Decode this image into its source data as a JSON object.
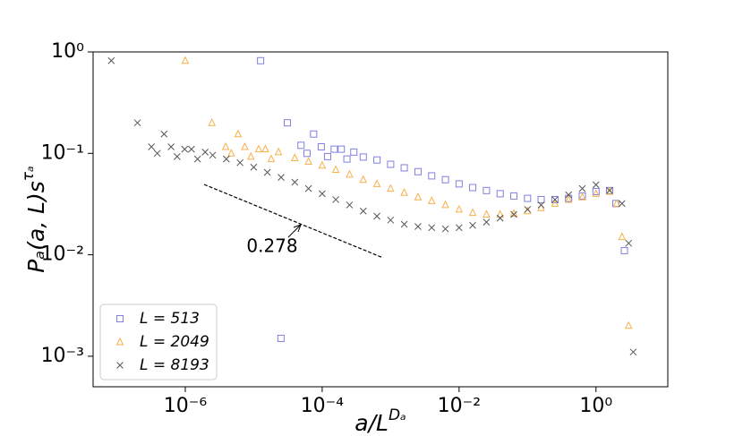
{
  "chart_data": {
    "type": "scatter",
    "xlabel": {
      "base": "a/L",
      "sup": "Dₐ"
    },
    "ylabel": {
      "base": "Pₐ(a, L)s",
      "sup": "τₐ"
    },
    "xscale": "log",
    "yscale": "log",
    "xlim": [
      4.5e-08,
      11.2
    ],
    "ylim": [
      0.0005,
      1
    ],
    "xticks": [
      {
        "value": 1e-06,
        "label": "10⁻⁶"
      },
      {
        "value": 0.0001,
        "label": "10⁻⁴"
      },
      {
        "value": 0.01,
        "label": "10⁻²"
      },
      {
        "value": 1,
        "label": "10⁰"
      }
    ],
    "yticks": [
      {
        "value": 0.001,
        "label": "10⁻³"
      },
      {
        "value": 0.01,
        "label": "10⁻²"
      },
      {
        "value": 0.1,
        "label": "10⁻¹"
      },
      {
        "value": 1,
        "label": "10⁰"
      }
    ],
    "legend": "lower left",
    "annotation": "0.278",
    "series": [
      {
        "name": "L = 513",
        "color": "#8080e0",
        "marker": "square",
        "x": [
          1.26e-05,
          2.5e-05,
          3.1e-05,
          4.9e-05,
          6e-05,
          7.5e-05,
          9.7e-05,
          0.00012,
          0.00015,
          0.00019,
          0.00023,
          0.00029,
          0.000398,
          0.000631,
          0.001,
          0.00158,
          0.00251,
          0.00398,
          0.00631,
          0.01,
          0.0158,
          0.0251,
          0.0398,
          0.0631,
          0.1,
          0.158,
          0.251,
          0.398,
          0.631,
          1,
          1.58,
          1.95,
          2.6
        ],
        "values": [
          0.82,
          0.0015,
          0.2,
          0.12,
          0.1,
          0.155,
          0.116,
          0.093,
          0.11,
          0.11,
          0.088,
          0.103,
          0.092,
          0.086,
          0.078,
          0.072,
          0.066,
          0.06,
          0.055,
          0.05,
          0.046,
          0.043,
          0.04,
          0.038,
          0.036,
          0.035,
          0.035,
          0.036,
          0.038,
          0.042,
          0.043,
          0.032,
          0.011
        ]
      },
      {
        "name": "L = 2049",
        "color": "#f7b04a",
        "marker": "triangle",
        "x": [
          1e-06,
          2.45e-06,
          3.9e-06,
          4.7e-06,
          5.9e-06,
          7.4e-06,
          9.1e-06,
          1.18e-05,
          1.48e-05,
          1.8e-05,
          2.3e-05,
          3.98e-05,
          6.31e-05,
          0.0001,
          0.000158,
          0.000251,
          0.000398,
          0.000631,
          0.001,
          0.00158,
          0.00251,
          0.00398,
          0.00631,
          0.01,
          0.0158,
          0.0251,
          0.0398,
          0.0631,
          0.1,
          0.158,
          0.251,
          0.398,
          0.631,
          1,
          1.58,
          2.0,
          2.4,
          3.0
        ],
        "values": [
          0.82,
          0.2,
          0.116,
          0.1,
          0.155,
          0.116,
          0.093,
          0.11,
          0.11,
          0.088,
          0.103,
          0.09,
          0.083,
          0.076,
          0.069,
          0.062,
          0.055,
          0.05,
          0.045,
          0.041,
          0.037,
          0.034,
          0.031,
          0.028,
          0.026,
          0.025,
          0.025,
          0.0255,
          0.027,
          0.029,
          0.032,
          0.035,
          0.037,
          0.04,
          0.042,
          0.032,
          0.015,
          0.002
        ]
      },
      {
        "name": "L = 8193",
        "color": "#555555",
        "marker": "x",
        "x": [
          8.3e-08,
          2e-07,
          3.2e-07,
          3.9e-07,
          4.9e-07,
          6.2e-07,
          7.6e-07,
          9.8e-07,
          1.23e-06,
          1.51e-06,
          1.95e-06,
          2.51e-06,
          3.98e-06,
          6.31e-06,
          1e-05,
          1.58e-05,
          2.51e-05,
          3.98e-05,
          6.31e-05,
          0.0001,
          0.000158,
          0.000251,
          0.000398,
          0.000631,
          0.001,
          0.00158,
          0.00251,
          0.00398,
          0.00631,
          0.01,
          0.0158,
          0.0251,
          0.0398,
          0.0631,
          0.1,
          0.158,
          0.251,
          0.398,
          0.631,
          1,
          1.58,
          2.4,
          3.0,
          3.5
        ],
        "values": [
          0.82,
          0.2,
          0.116,
          0.1,
          0.155,
          0.116,
          0.093,
          0.11,
          0.11,
          0.088,
          0.103,
          0.096,
          0.088,
          0.081,
          0.073,
          0.065,
          0.058,
          0.052,
          0.045,
          0.04,
          0.035,
          0.031,
          0.027,
          0.024,
          0.022,
          0.02,
          0.019,
          0.0185,
          0.018,
          0.0185,
          0.0195,
          0.021,
          0.023,
          0.025,
          0.028,
          0.031,
          0.035,
          0.039,
          0.045,
          0.049,
          0.043,
          0.032,
          0.013,
          0.0011
        ]
      }
    ]
  }
}
